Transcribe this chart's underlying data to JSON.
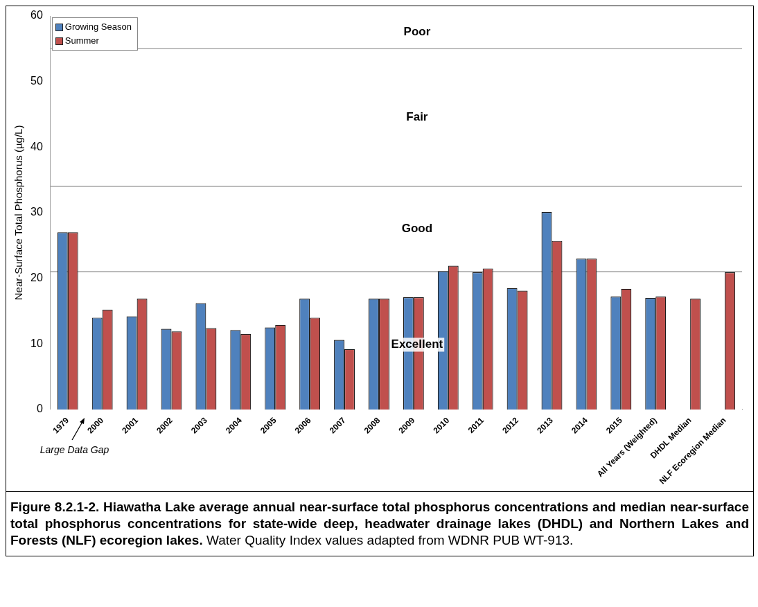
{
  "chart_data": {
    "type": "bar",
    "title": "Figure 8.2.1-2. Hiawatha Lake average annual near-surface total phosphorus concentrations and median near-surface total phosphorus concentrations for state-wide deep, headwater drainage lakes (DHDL) and Northern Lakes and Forests (NLF) ecoregion lakes.",
    "ylabel": "Near-Surface Total Phosphorus (µg/L)",
    "categories": [
      "1979",
      "2000",
      "2001",
      "2002",
      "2003",
      "2004",
      "2005",
      "2006",
      "2007",
      "2008",
      "2009",
      "2010",
      "2011",
      "2012",
      "2013",
      "2014",
      "2015",
      "All Years (Weighted)",
      "DHDL Median",
      "NLF Ecoregion Median"
    ],
    "series": [
      {
        "name": "Growing Season",
        "color": "#4f81bd",
        "values": [
          27,
          14,
          14.2,
          12.3,
          16.2,
          12.1,
          12.5,
          16.9,
          10.6,
          16.9,
          17.1,
          21.1,
          20.9,
          18.5,
          30.1,
          23,
          17.2,
          17,
          null,
          null
        ]
      },
      {
        "name": "Summer",
        "color": "#c0504d",
        "values": [
          27,
          15.2,
          16.9,
          11.9,
          12.4,
          11.5,
          12.9,
          14,
          9.2,
          16.9,
          17.1,
          21.9,
          21.5,
          18.1,
          25.7,
          23,
          18.4,
          17.2,
          16.9,
          20.9
        ]
      }
    ],
    "ylim": [
      0,
      60
    ],
    "yticks": [
      0,
      10,
      20,
      30,
      40,
      50,
      60
    ],
    "grid": false,
    "legend": "top left",
    "bands": [
      {
        "axis": "y",
        "from": 55,
        "to": 60,
        "label": "Poor",
        "color": "#ffffff"
      },
      {
        "axis": "y",
        "from": 34,
        "to": 55,
        "label": "Fair",
        "color": "#ffffff"
      },
      {
        "axis": "y",
        "from": 21,
        "to": 34,
        "label": "Good",
        "color": "#ffffff"
      },
      {
        "axis": "y",
        "from": 0,
        "to": 21,
        "label": "Excellent",
        "color": "#ffffff"
      }
    ],
    "annotations": [
      "Large Data Gap",
      "Water Quality Index values adapted from WDNR PUB WT-913."
    ]
  }
}
